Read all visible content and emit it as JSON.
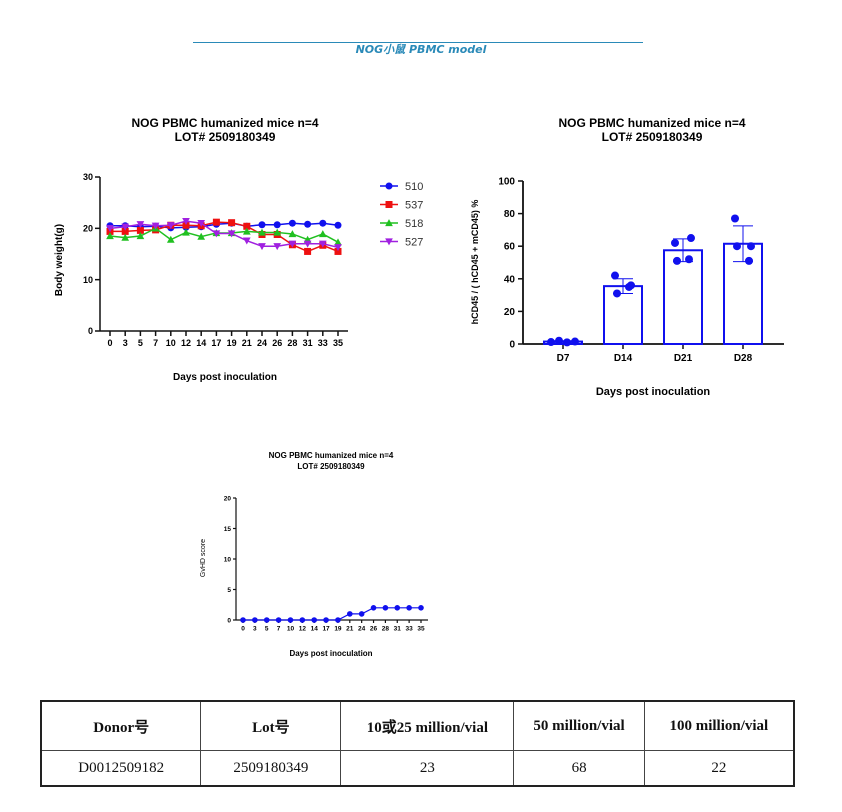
{
  "header": {
    "title": "NOG小鼠  PBMC model"
  },
  "chart_data": [
    {
      "type": "line",
      "title": "NOG PBMC humanized mice n=4",
      "subtitle": "LOT# 2509180349",
      "xlabel": "Days post inoculation",
      "ylabel": "Body weight(g)",
      "ylim": [
        0,
        30
      ],
      "yticks": [
        "0",
        "10",
        "20",
        "30"
      ],
      "categories": [
        "0",
        "3",
        "5",
        "7",
        "10",
        "12",
        "14",
        "17",
        "19",
        "21",
        "24",
        "26",
        "28",
        "31",
        "33",
        "35"
      ],
      "legend_position": "right",
      "series": [
        {
          "name": "510",
          "color": "#1010ee",
          "marker": "circle",
          "values": [
            20.5,
            20.5,
            20.3,
            20.4,
            20.1,
            20.2,
            20.3,
            20.8,
            21.0,
            20.4,
            20.7,
            20.7,
            21.0,
            20.8,
            21.0,
            20.6
          ]
        },
        {
          "name": "537",
          "color": "#ee1010",
          "marker": "square",
          "values": [
            19.4,
            19.4,
            19.6,
            19.7,
            20.6,
            20.6,
            20.5,
            21.2,
            21.1,
            20.4,
            18.8,
            18.8,
            16.8,
            15.5,
            16.7,
            15.5
          ]
        },
        {
          "name": "518",
          "color": "#20c020",
          "marker": "triangle-up",
          "values": [
            18.5,
            18.2,
            18.5,
            20.0,
            17.8,
            19.2,
            18.4,
            19.1,
            19.1,
            19.4,
            19.2,
            19.2,
            18.9,
            17.8,
            18.9,
            17.3
          ]
        },
        {
          "name": "527",
          "color": "#a020e0",
          "marker": "triangle-down",
          "values": [
            20.0,
            20.3,
            20.8,
            20.5,
            20.6,
            21.4,
            21.0,
            19.0,
            19.0,
            17.6,
            16.5,
            16.5,
            17.0,
            17.0,
            17.0,
            16.3
          ]
        }
      ]
    },
    {
      "type": "bar",
      "title": "NOG PBMC humanized mice n=4",
      "subtitle": "LOT# 2509180349",
      "xlabel": "Days post inoculation",
      "ylabel": "hCD45 / ( hCD45 + mCD45) %",
      "ylim": [
        0,
        100
      ],
      "yticks": [
        "0",
        "20",
        "40",
        "60",
        "80",
        "100"
      ],
      "categories": [
        "D7",
        "D14",
        "D21",
        "D28"
      ],
      "values": [
        1.5,
        35.5,
        57.5,
        61.5
      ],
      "error_sd": [
        0.5,
        4.5,
        7.0,
        11.0
      ],
      "points": [
        [
          1.2,
          2.0,
          1.0,
          1.5
        ],
        [
          42,
          36,
          31,
          35
        ],
        [
          62,
          65,
          51,
          52
        ],
        [
          77,
          60,
          60,
          51
        ]
      ],
      "color": "#1010ee"
    },
    {
      "type": "line",
      "title": "NOG PBMC humanized mice n=4",
      "subtitle": "LOT# 2509180349",
      "xlabel": "Days post inoculation",
      "ylabel": "GvHD score",
      "ylim": [
        0,
        20
      ],
      "yticks": [
        "0",
        "5",
        "10",
        "15",
        "20"
      ],
      "categories": [
        "0",
        "3",
        "5",
        "7",
        "10",
        "12",
        "14",
        "17",
        "19",
        "21",
        "24",
        "26",
        "28",
        "31",
        "33",
        "35"
      ],
      "series": [
        {
          "name": "GvHD",
          "color": "#1010ee",
          "marker": "circle",
          "values": [
            0,
            0,
            0,
            0,
            0,
            0,
            0,
            0,
            0,
            1,
            1,
            2,
            2,
            2,
            2,
            2
          ]
        }
      ]
    }
  ],
  "table": {
    "headers": [
      "Donor号",
      "Lot号",
      "10或25 million/vial",
      "50 million/vial",
      "100 million/vial"
    ],
    "rows": [
      [
        "D0012509182",
        "2509180349",
        "23",
        "68",
        "22"
      ]
    ]
  }
}
